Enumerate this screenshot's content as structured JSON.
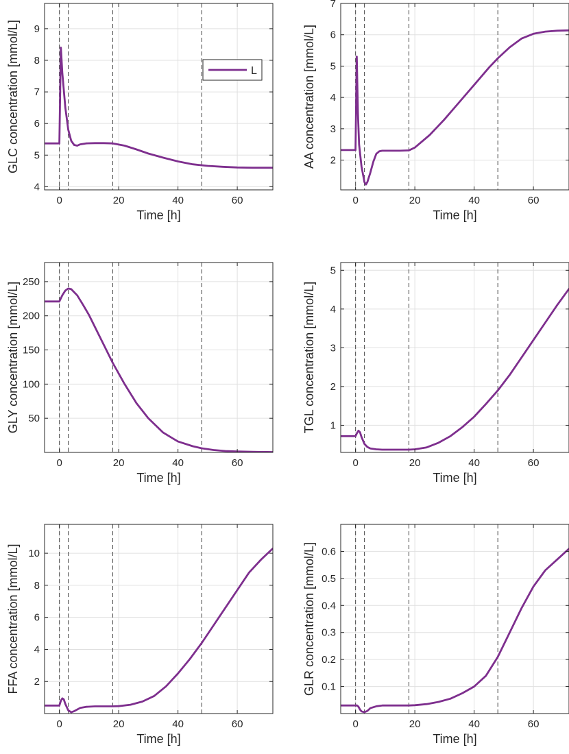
{
  "figure": {
    "series_name": "L",
    "line_color": "#7E2F8E",
    "vline_color": "#555555",
    "grid_color": "#e0e0e0",
    "event_times_h": [
      0,
      3,
      18,
      48
    ]
  },
  "chart_data": [
    {
      "type": "line",
      "id": "glc",
      "xlabel": "Time [h]",
      "ylabel": "GLC concentration [mmol/L]",
      "xlim": [
        -5,
        72
      ],
      "ylim": [
        3.9,
        9.8
      ],
      "xticks": [
        0,
        20,
        40,
        60
      ],
      "yticks": [
        4,
        5,
        6,
        7,
        8,
        9
      ],
      "legend": {
        "label": "L",
        "location": "top-right"
      },
      "series": [
        {
          "name": "L",
          "x": [
            -5,
            0,
            0.5,
            1,
            2,
            3,
            4,
            5,
            6,
            7,
            9,
            12,
            15,
            18,
            22,
            26,
            30,
            35,
            40,
            45,
            50,
            55,
            60,
            65,
            72
          ],
          "y": [
            5.37,
            5.37,
            8.4,
            7.6,
            6.5,
            5.8,
            5.45,
            5.32,
            5.3,
            5.34,
            5.37,
            5.38,
            5.38,
            5.37,
            5.3,
            5.18,
            5.05,
            4.92,
            4.8,
            4.71,
            4.66,
            4.63,
            4.61,
            4.6,
            4.6
          ]
        }
      ]
    },
    {
      "type": "line",
      "id": "aa",
      "xlabel": "Time [h]",
      "ylabel": "AA concentration [mmol/L]",
      "xlim": [
        -5,
        72
      ],
      "ylim": [
        1.05,
        7
      ],
      "xticks": [
        0,
        20,
        40,
        60
      ],
      "yticks": [
        2,
        3,
        4,
        5,
        6,
        7
      ],
      "series": [
        {
          "name": "L",
          "x": [
            -5,
            0,
            0.4,
            0.8,
            1.2,
            2,
            3,
            3.5,
            4,
            5,
            6,
            7,
            8,
            9,
            12,
            15,
            18,
            20,
            25,
            30,
            35,
            40,
            45,
            48,
            52,
            56,
            60,
            64,
            68,
            72
          ],
          "y": [
            2.32,
            2.32,
            5.3,
            3.5,
            2.5,
            1.8,
            1.3,
            1.22,
            1.3,
            1.6,
            1.95,
            2.2,
            2.28,
            2.3,
            2.3,
            2.3,
            2.31,
            2.4,
            2.8,
            3.3,
            3.85,
            4.4,
            4.95,
            5.25,
            5.6,
            5.88,
            6.03,
            6.1,
            6.13,
            6.14
          ]
        }
      ]
    },
    {
      "type": "line",
      "id": "gly",
      "xlabel": "Time [h]",
      "ylabel": "GLY concentration [mmol/L]",
      "xlim": [
        -5,
        72
      ],
      "ylim": [
        0,
        278
      ],
      "xticks": [
        0,
        20,
        40,
        60
      ],
      "yticks": [
        50,
        100,
        150,
        200,
        250
      ],
      "series": [
        {
          "name": "L",
          "x": [
            -5,
            0,
            1,
            2,
            3,
            4,
            6,
            8,
            10,
            14,
            18,
            22,
            26,
            30,
            35,
            40,
            45,
            48,
            52,
            56,
            60,
            65,
            72
          ],
          "y": [
            221,
            221,
            230,
            237,
            240,
            239,
            230,
            216,
            201,
            166,
            131,
            100,
            72,
            50,
            29,
            16,
            9,
            6,
            3.5,
            2,
            1.3,
            0.8,
            0.5
          ]
        }
      ]
    },
    {
      "type": "line",
      "id": "tgl",
      "xlabel": "Time [h]",
      "ylabel": "TGL concentration [mmol/L]",
      "xlim": [
        -5,
        72
      ],
      "ylim": [
        0.3,
        5.2
      ],
      "xticks": [
        0,
        20,
        40,
        60
      ],
      "yticks": [
        1,
        2,
        3,
        4,
        5
      ],
      "series": [
        {
          "name": "L",
          "x": [
            -5,
            0,
            0.5,
            1,
            1.5,
            2,
            3,
            4,
            5,
            7,
            9,
            12,
            15,
            18,
            20,
            24,
            28,
            32,
            36,
            40,
            44,
            48,
            52,
            56,
            60,
            64,
            68,
            72
          ],
          "y": [
            0.72,
            0.72,
            0.8,
            0.86,
            0.82,
            0.7,
            0.52,
            0.44,
            0.4,
            0.38,
            0.37,
            0.37,
            0.37,
            0.37,
            0.38,
            0.43,
            0.55,
            0.72,
            0.95,
            1.22,
            1.55,
            1.9,
            2.3,
            2.75,
            3.2,
            3.65,
            4.1,
            4.52
          ]
        }
      ]
    },
    {
      "type": "line",
      "id": "ffa",
      "xlabel": "Time [h]",
      "ylabel": "FFA concentration [mmol/L]",
      "xlim": [
        -5,
        72
      ],
      "ylim": [
        0,
        11.8
      ],
      "xticks": [
        0,
        20,
        40,
        60
      ],
      "yticks": [
        2,
        4,
        6,
        8,
        10
      ],
      "series": [
        {
          "name": "L",
          "x": [
            -5,
            0,
            0.5,
            1,
            1.5,
            2,
            3,
            4,
            5,
            7,
            9,
            12,
            15,
            18,
            20,
            24,
            28,
            32,
            36,
            40,
            44,
            48,
            52,
            56,
            60,
            64,
            68,
            72
          ],
          "y": [
            0.5,
            0.5,
            0.8,
            0.95,
            0.88,
            0.6,
            0.2,
            0.08,
            0.15,
            0.35,
            0.42,
            0.45,
            0.45,
            0.45,
            0.46,
            0.55,
            0.75,
            1.1,
            1.7,
            2.5,
            3.4,
            4.4,
            5.5,
            6.6,
            7.7,
            8.8,
            9.6,
            10.3
          ]
        }
      ]
    },
    {
      "type": "line",
      "id": "glr",
      "xlabel": "Time [h]",
      "ylabel": "GLR concentration [mmol/L]",
      "xlim": [
        -5,
        72
      ],
      "ylim": [
        0,
        0.7
      ],
      "xticks": [
        0,
        20,
        40,
        60
      ],
      "yticks": [
        0.1,
        0.2,
        0.3,
        0.4,
        0.5,
        0.6
      ],
      "series": [
        {
          "name": "L",
          "x": [
            -5,
            0,
            0.5,
            1,
            1.5,
            2,
            3,
            4,
            5,
            7,
            9,
            12,
            15,
            18,
            20,
            24,
            28,
            32,
            36,
            40,
            44,
            48,
            52,
            56,
            60,
            64,
            68,
            72
          ],
          "y": [
            0.03,
            0.03,
            0.03,
            0.025,
            0.015,
            0.008,
            0.005,
            0.01,
            0.02,
            0.027,
            0.03,
            0.03,
            0.03,
            0.03,
            0.031,
            0.035,
            0.043,
            0.055,
            0.075,
            0.1,
            0.14,
            0.21,
            0.3,
            0.39,
            0.47,
            0.53,
            0.57,
            0.61
          ]
        }
      ]
    }
  ]
}
